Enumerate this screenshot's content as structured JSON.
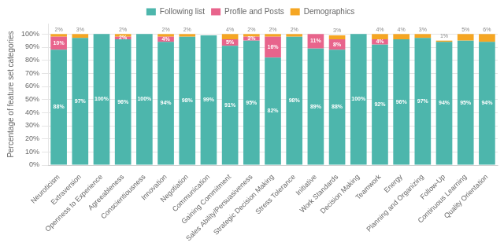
{
  "chart_data": {
    "type": "bar",
    "categories": [
      "Neuroticism",
      "Extraversion",
      "Openness to Experience",
      "Agreeableness",
      "Conscientiousness",
      "Innovation",
      "Negotiation",
      "Communication",
      "Gaining Commitment",
      "Sales Ability/Persuasiveness",
      "Strategic Decision Making",
      "Stress Tolerance",
      "Initiative",
      "Work Standards",
      "Decision Making",
      "Teamwork",
      "Energy",
      "Planning and Organizing",
      "Follow-Up",
      "Continuous Learning",
      "Quality Orientation"
    ],
    "series": [
      {
        "name": "Following list",
        "color": "#4DB6AC",
        "values": [
          88,
          97,
          100,
          96,
          100,
          94,
          98,
          99,
          91,
          95,
          82,
          98,
          89,
          88,
          100,
          92,
          96,
          97,
          94,
          95,
          94
        ],
        "value_labels": [
          "88%",
          "97%",
          "100%",
          "96%",
          "100%",
          "94%",
          "98%",
          "99%",
          "91%",
          "95%",
          "82%",
          "98%",
          "89%",
          "88%",
          "100%",
          "92%",
          "96%",
          "97%",
          "94%",
          "95%",
          "94%"
        ]
      },
      {
        "name": "Profile and Posts",
        "color": "#E8648C",
        "values": [
          10,
          0,
          0,
          2,
          0,
          4,
          0,
          0,
          5,
          3,
          16,
          0,
          11,
          8,
          0,
          4,
          0,
          0,
          0,
          0,
          0
        ],
        "value_labels": [
          "10%",
          null,
          null,
          "2%",
          null,
          "4%",
          null,
          null,
          "5%",
          "3%",
          "16%",
          null,
          "11%",
          "8%",
          null,
          "4%",
          null,
          null,
          null,
          null,
          null
        ]
      },
      {
        "name": "Demographics",
        "color": "#F5A623",
        "values": [
          2,
          3,
          0,
          2,
          0,
          2,
          2,
          0,
          4,
          2,
          2,
          2,
          0,
          3,
          0,
          4,
          4,
          3,
          1,
          5,
          6
        ],
        "value_labels": [
          "2%",
          "3%",
          null,
          "2%",
          null,
          "2%",
          "2%",
          null,
          "4%",
          "2%",
          "2%",
          "2%",
          null,
          "3%",
          null,
          "4%",
          "4%",
          "3%",
          "1%",
          "5%",
          "6%"
        ]
      }
    ],
    "ylabel": "Percentage of feature set categories",
    "ylim": [
      0,
      108
    ],
    "yticks": [
      {
        "value": 0,
        "label": "0%"
      },
      {
        "value": 10,
        "label": "10%"
      },
      {
        "value": 20,
        "label": "20%"
      },
      {
        "value": 30,
        "label": "30%"
      },
      {
        "value": 40,
        "label": "40%"
      },
      {
        "value": 50,
        "label": "50%"
      },
      {
        "value": 60,
        "label": "60%"
      },
      {
        "value": 70,
        "label": "70%"
      },
      {
        "value": 80,
        "label": "80%"
      },
      {
        "value": 90,
        "label": "90%"
      },
      {
        "value": 100,
        "label": "100%"
      }
    ],
    "grid": true,
    "legend": "top",
    "stacked": true,
    "data_labels": true
  }
}
